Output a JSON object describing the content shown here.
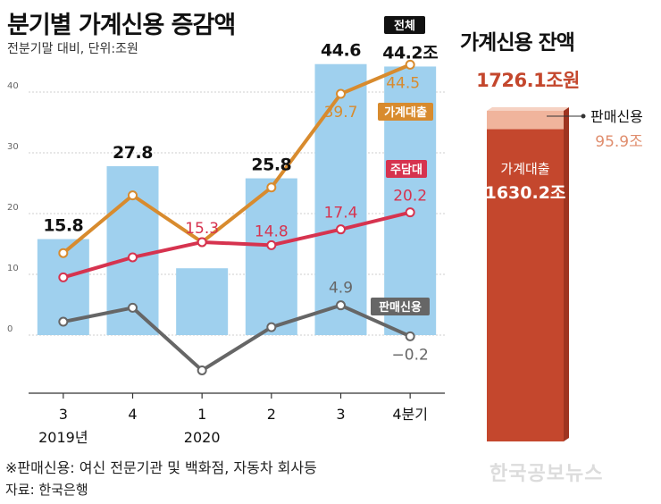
{
  "title": "분기별 가계신용 증감액",
  "subtitle": "전분기말 대비, 단위:조원",
  "side_title": "가계신용 잔액",
  "footnote": "※판매신용: 여신 전문기관 및 백화점, 자동차 회사등",
  "source": "자료: 한국은행",
  "watermark": "한국공보뉴스",
  "colors": {
    "bar": "#9fd0ee",
    "household_loans": "#d88b2e",
    "mortgage": "#d6334f",
    "sales_credit": "#666666",
    "stack_main": "#c4472d",
    "stack_top": "#f0b49c"
  },
  "chart_data": [
    {
      "type": "bar",
      "categories": [
        "3",
        "4",
        "1",
        "2",
        "3",
        "4분기"
      ],
      "category_years": [
        "2019년",
        "",
        "2020",
        "",
        "",
        ""
      ],
      "ylim": [
        -9,
        45
      ],
      "yticks": [
        0,
        10,
        20,
        30,
        40
      ],
      "grid": true,
      "series": [
        {
          "name": "전체",
          "kind": "bar",
          "values": [
            15.8,
            27.8,
            11.0,
            25.8,
            44.6,
            44.2
          ],
          "labels": [
            "15.8",
            "27.8",
            "",
            "25.8",
            "44.6",
            "44.2조"
          ]
        },
        {
          "name": "가계대출",
          "kind": "line",
          "values": [
            13.5,
            23.0,
            15.3,
            24.3,
            39.7,
            44.5
          ],
          "labels": [
            "",
            "",
            "",
            "",
            "39.7",
            "44.5"
          ]
        },
        {
          "name": "주담대",
          "kind": "line",
          "values": [
            9.5,
            12.8,
            15.3,
            14.8,
            17.4,
            20.2
          ],
          "labels": [
            "",
            "",
            "15.3",
            "14.8",
            "17.4",
            "20.2"
          ]
        },
        {
          "name": "판매신용",
          "kind": "line",
          "values": [
            2.2,
            4.5,
            -5.8,
            1.3,
            4.9,
            -0.2
          ],
          "labels": [
            "",
            "",
            "",
            "",
            "4.9",
            "−0.2"
          ]
        }
      ]
    },
    {
      "type": "bar",
      "title": "가계신용 잔액",
      "stacked": true,
      "total": 1726.1,
      "total_label": "1726.1조원",
      "series": [
        {
          "name": "가계대출",
          "values": [
            1630.2
          ],
          "label": "1630.2조"
        },
        {
          "name": "판매신용",
          "values": [
            95.9
          ],
          "label": "95.9조"
        }
      ]
    }
  ]
}
